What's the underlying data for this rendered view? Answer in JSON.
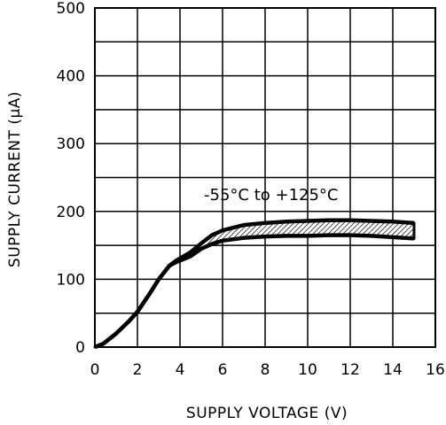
{
  "chart_data": {
    "type": "area",
    "title": "",
    "xlabel": "SUPPLY VOLTAGE (V)",
    "ylabel": "SUPPLY CURRENT (μA)",
    "xlim": [
      0,
      16
    ],
    "ylim": [
      0,
      500
    ],
    "x_ticks": [
      0,
      2,
      4,
      6,
      8,
      10,
      12,
      14,
      16
    ],
    "y_ticks": [
      0,
      100,
      200,
      300,
      400,
      500
    ],
    "x_tick_labels": [
      "0",
      "2",
      "4",
      "6",
      "8",
      "10",
      "12",
      "14",
      "16"
    ],
    "y_tick_labels": [
      "0",
      "100",
      "200",
      "300",
      "400",
      "500"
    ],
    "grid": true,
    "annotation": "-55°C to +125°C",
    "series": [
      {
        "x": [
          0,
          0.4,
          1,
          1.6,
          2,
          2.6,
          3,
          3.5,
          3.8,
          4.5,
          5,
          5.5,
          6,
          7,
          8,
          9,
          10,
          11,
          12,
          13,
          14,
          15
        ],
        "values": [
          0,
          5,
          20,
          38,
          52,
          80,
          100,
          120,
          127,
          140,
          153,
          165,
          172,
          180,
          183,
          185,
          186,
          187,
          187,
          186,
          185,
          183
        ]
      },
      {
        "x": [
          0,
          0.4,
          1,
          1.6,
          2,
          2.6,
          3,
          3.5,
          3.8,
          4.5,
          5,
          5.5,
          6,
          7,
          8,
          9,
          10,
          11,
          12,
          13,
          14,
          15
        ],
        "values": [
          0,
          5,
          20,
          38,
          52,
          80,
          100,
          120,
          125,
          134,
          145,
          152,
          157,
          161,
          163,
          164,
          164,
          165,
          165,
          164,
          162,
          160
        ]
      }
    ]
  }
}
